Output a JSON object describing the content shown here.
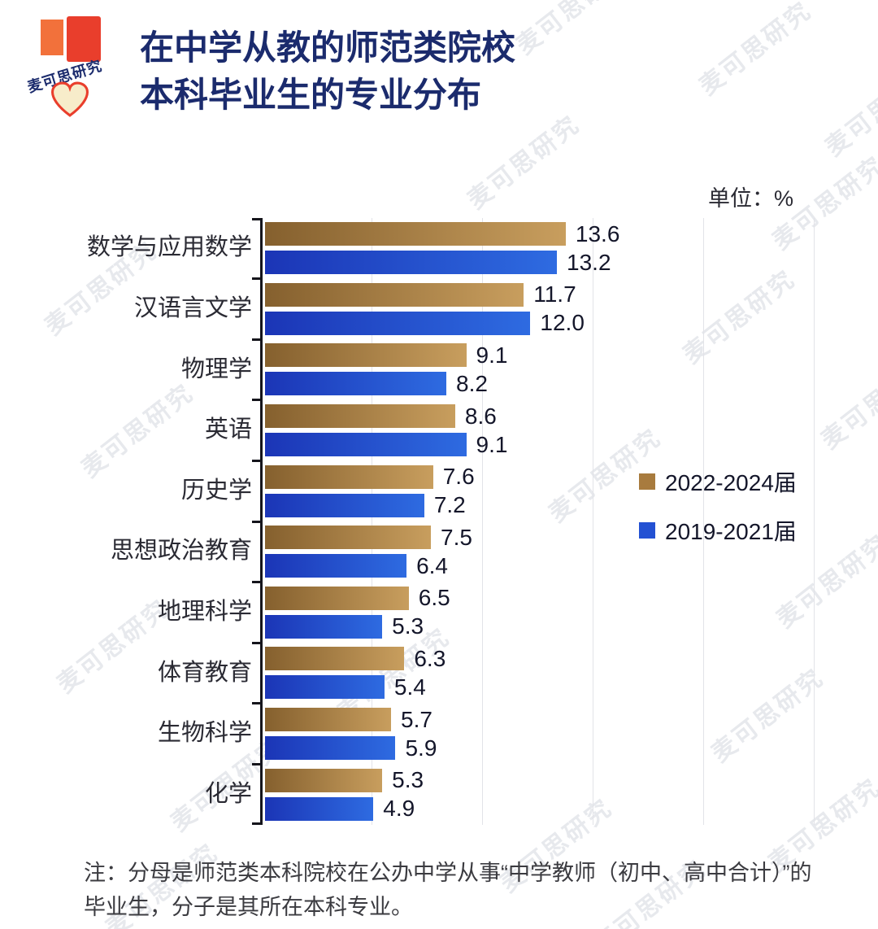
{
  "page": {
    "logo_text": "麦可思研究",
    "unit_label": "单位：%",
    "note": "注：分母是师范类本科院校在公办中学从事“中学教师（初中、高中合计）”的毕业生，分子是其所在本科专业。",
    "watermark_text": "麦可思研究"
  },
  "chart_data": {
    "type": "bar",
    "orientation": "horizontal",
    "title": "在中学从教的师范类院校 本科毕业生的专业分布",
    "title_lines": [
      "在中学从教的师范类院校",
      "本科毕业生的专业分布"
    ],
    "unit": "%",
    "xlim": [
      0,
      25
    ],
    "gridlines": [
      5,
      10,
      15,
      20,
      25
    ],
    "grid": true,
    "legend_position": "right",
    "value_labels": true,
    "categories": [
      "数学与应用数学",
      "汉语言文学",
      "物理学",
      "英语",
      "历史学",
      "思想政治教育",
      "地理科学",
      "体育教育",
      "生物科学",
      "化学"
    ],
    "series": [
      {
        "name": "2022-2024届",
        "color": "#a87b3e",
        "gradient": [
          "#85602e",
          "#c89e5e"
        ],
        "values": [
          13.6,
          11.7,
          9.1,
          8.6,
          7.6,
          7.5,
          6.5,
          6.3,
          5.7,
          5.3
        ]
      },
      {
        "name": "2019-2021届",
        "color": "#2351d3",
        "gradient": [
          "#1b35b6",
          "#2e6be1"
        ],
        "values": [
          13.2,
          12.0,
          8.2,
          9.1,
          7.2,
          6.4,
          5.3,
          5.4,
          5.9,
          4.9
        ]
      }
    ]
  },
  "colors": {
    "title": "#1b2b6d",
    "series_gold": "#a87b3e",
    "series_blue": "#2351d3",
    "axis": "#15151c",
    "background": "#ffffff",
    "gridline": "#e2e3e8",
    "logo_red": "#e93e2c",
    "logo_orange": "#f2713b"
  }
}
